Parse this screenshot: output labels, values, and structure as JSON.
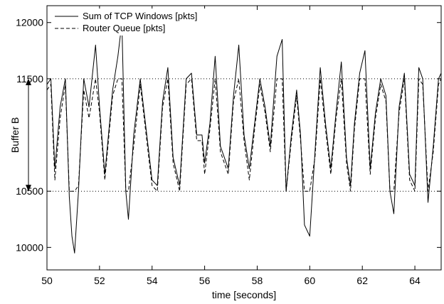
{
  "chart_data": {
    "type": "line",
    "xlabel": "time [seconds]",
    "ylabel": "",
    "xlim": [
      50,
      65
    ],
    "ylim": [
      9800,
      12150
    ],
    "xticks": [
      50,
      52,
      54,
      56,
      58,
      60,
      62,
      64
    ],
    "yticks": [
      10000,
      10500,
      11500,
      12000
    ],
    "grid": false,
    "legend_position": "top-left",
    "reference_lines": [
      {
        "y": 11500,
        "style": "dotted"
      },
      {
        "y": 10500,
        "style": "dotted"
      }
    ],
    "annotation": {
      "label": "Buffer B",
      "from": 10500,
      "to": 11500,
      "style": "double-arrow"
    },
    "series": [
      {
        "name": "Sum of TCP Windows [pkts]",
        "style": "solid",
        "color": "#000000",
        "x": [
          50.0,
          50.15,
          50.3,
          50.5,
          50.7,
          50.85,
          50.95,
          51.05,
          51.2,
          51.4,
          51.6,
          51.85,
          52.0,
          52.2,
          52.5,
          52.7,
          52.85,
          53.0,
          53.1,
          53.3,
          53.55,
          53.8,
          54.0,
          54.2,
          54.4,
          54.6,
          54.8,
          55.05,
          55.3,
          55.5,
          55.7,
          55.9,
          56.0,
          56.2,
          56.4,
          56.6,
          56.9,
          57.1,
          57.3,
          57.5,
          57.7,
          57.9,
          58.1,
          58.3,
          58.5,
          58.75,
          58.95,
          59.1,
          59.3,
          59.5,
          59.65,
          59.8,
          60.0,
          60.2,
          60.4,
          60.6,
          60.8,
          61.0,
          61.2,
          61.4,
          61.55,
          61.7,
          61.9,
          62.1,
          62.3,
          62.5,
          62.7,
          62.9,
          63.05,
          63.2,
          63.4,
          63.6,
          63.8,
          64.0,
          64.15,
          64.3,
          64.5,
          64.7,
          64.9,
          65.0
        ],
        "y": [
          11450,
          11500,
          10700,
          11250,
          11500,
          10450,
          10100,
          9950,
          10500,
          11500,
          11250,
          11800,
          11250,
          10650,
          11400,
          11700,
          12000,
          10500,
          10250,
          11000,
          11500,
          11000,
          10600,
          10550,
          11300,
          11600,
          10800,
          10550,
          11500,
          11550,
          11000,
          11000,
          10750,
          11100,
          11700,
          10900,
          10700,
          11350,
          11800,
          11000,
          10700,
          11100,
          11500,
          11250,
          10900,
          11700,
          11850,
          10500,
          11000,
          11400,
          11000,
          10200,
          10100,
          10850,
          11600,
          11100,
          10700,
          11200,
          11650,
          10800,
          10550,
          11100,
          11550,
          11750,
          10700,
          11200,
          11500,
          11350,
          10500,
          10300,
          11250,
          11550,
          10650,
          10550,
          11600,
          11500,
          10400,
          10900,
          11500,
          11550
        ]
      },
      {
        "name": "Router Queue [pkts]",
        "style": "dashed",
        "color": "#000000",
        "x": [
          50.0,
          50.15,
          50.3,
          50.5,
          50.7,
          50.85,
          50.95,
          51.05,
          51.2,
          51.4,
          51.6,
          51.85,
          52.0,
          52.2,
          52.5,
          52.7,
          52.85,
          53.0,
          53.1,
          53.3,
          53.55,
          53.8,
          54.0,
          54.2,
          54.4,
          54.6,
          54.8,
          55.05,
          55.3,
          55.5,
          55.7,
          55.9,
          56.0,
          56.2,
          56.4,
          56.6,
          56.9,
          57.1,
          57.3,
          57.5,
          57.7,
          57.9,
          58.1,
          58.3,
          58.5,
          58.75,
          58.95,
          59.1,
          59.3,
          59.5,
          59.65,
          59.8,
          60.0,
          60.2,
          60.4,
          60.6,
          60.8,
          61.0,
          61.2,
          61.4,
          61.55,
          61.7,
          61.9,
          62.1,
          62.3,
          62.5,
          62.7,
          62.9,
          63.05,
          63.2,
          63.4,
          63.6,
          63.8,
          64.0,
          64.15,
          64.3,
          64.5,
          64.7,
          64.9,
          65.0
        ],
        "y": [
          11400,
          11450,
          10600,
          11150,
          11450,
          10500,
          10500,
          10500,
          10550,
          11400,
          11150,
          11500,
          11200,
          10600,
          11350,
          11500,
          11500,
          10500,
          10500,
          10900,
          11450,
          10950,
          10550,
          10500,
          11250,
          11500,
          10750,
          10500,
          11450,
          11500,
          10950,
          10950,
          10650,
          11050,
          11500,
          10850,
          10650,
          11300,
          11500,
          10950,
          10600,
          11050,
          11450,
          11200,
          10850,
          11500,
          11500,
          10500,
          10950,
          11350,
          10950,
          10500,
          10500,
          10800,
          11500,
          11050,
          10650,
          11150,
          11500,
          10750,
          10500,
          11050,
          11500,
          11500,
          10650,
          11150,
          11450,
          11300,
          10500,
          10500,
          11200,
          11500,
          10600,
          10500,
          11500,
          11450,
          10500,
          10850,
          11450,
          11500
        ]
      }
    ]
  }
}
